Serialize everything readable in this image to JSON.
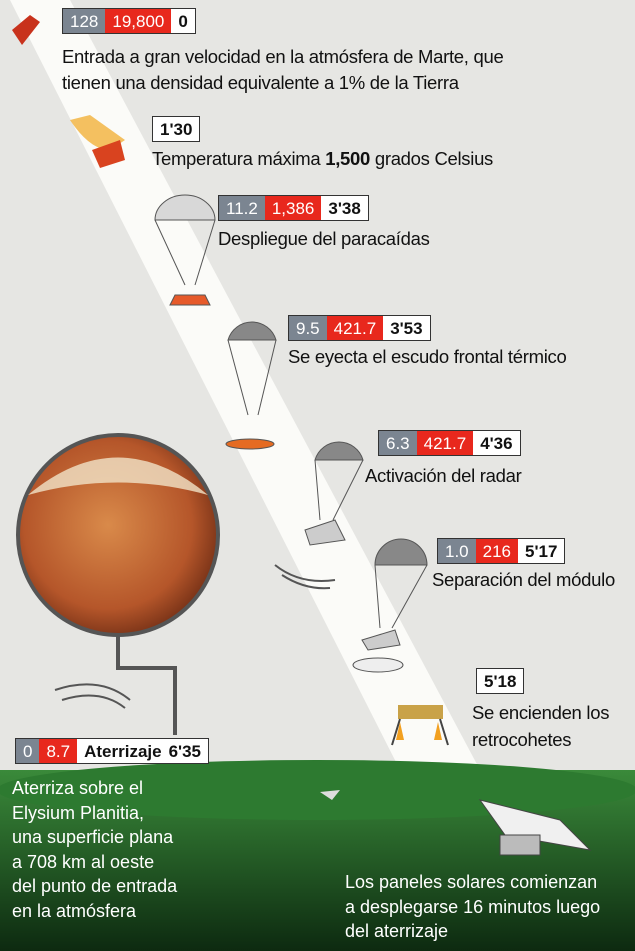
{
  "steps": [
    {
      "speed": "128",
      "temperature": "19,800",
      "time": "0",
      "text": [
        "Entrada a gran velocidad en la atmósfera de Marte, que",
        "tienen una densidad equivalente a 1% de la Tierra"
      ]
    },
    {
      "time": "1'30",
      "text": [
        "Temperatura máxima ",
        "1,500",
        " grados Celsius"
      ]
    },
    {
      "speed": "11.2",
      "temperature": "1,386",
      "time": "3'38",
      "text": [
        "Despliegue del paracaídas"
      ]
    },
    {
      "speed": "9.5",
      "temperature": "421.7",
      "time": "3'53",
      "text": [
        "Se eyecta el escudo frontal térmico"
      ]
    },
    {
      "speed": "6.3",
      "temperature": "421.7",
      "time": "4'36",
      "text": [
        "Activación del radar"
      ]
    },
    {
      "speed": "1.0",
      "temperature": "216",
      "time": "5'17",
      "text": [
        "Separación del módulo"
      ]
    },
    {
      "time": "5'18",
      "text": [
        "Se encienden los",
        "retrocohetes"
      ]
    }
  ],
  "landing": {
    "speed": "0",
    "temperature": "8.7",
    "label": "Aterrizaje",
    "time": "6'35",
    "text": [
      "Aterriza sobre el",
      "Elysium Planitia,",
      "una superficie plana",
      "a 708 km  al oeste",
      "del punto de entrada",
      "en la atmósfera"
    ]
  },
  "panels_note": [
    "Los paneles solares comienzan",
    "a desplegarse 16 minutos luego",
    "del aterrizaje"
  ]
}
